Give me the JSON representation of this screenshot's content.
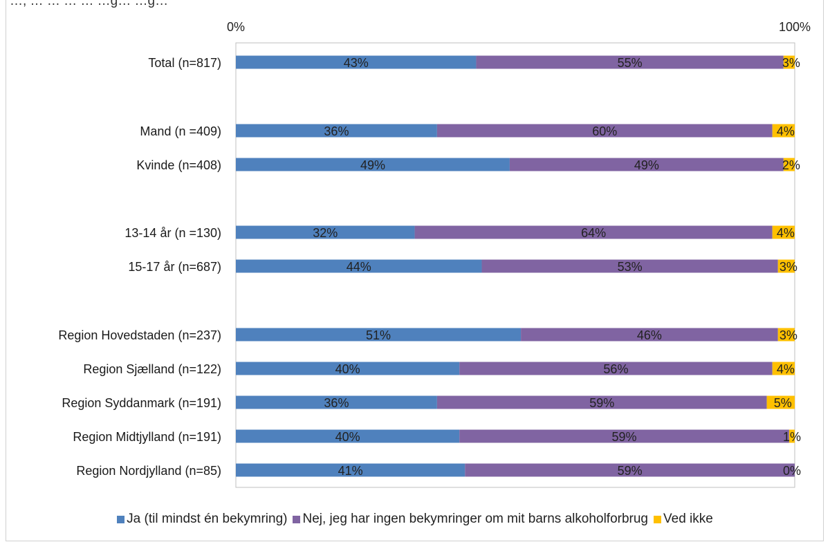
{
  "top_text": "…, … … … … …g… …g…",
  "chart_data": {
    "type": "bar",
    "orientation": "horizontal",
    "stacked": true,
    "percent": true,
    "categories": [
      "Total (n=817)",
      "Mand (n =409)",
      "Kvinde (n=408)",
      "13-14 år (n =130)",
      "15-17 år (n=687)",
      "Region Hovedstaden (n=237)",
      "Region Sjælland (n=122)",
      "Region Syddanmark (n=191)",
      "Region Midtjylland (n=191)",
      "Region Nordjylland (n=85)"
    ],
    "series": [
      {
        "name": "Ja (til mindst én bekymring)",
        "color": "#4f81bd",
        "values": [
          43,
          36,
          49,
          32,
          44,
          51,
          40,
          36,
          40,
          41
        ]
      },
      {
        "name": "Nej, jeg har ingen bekymringer om mit barns alkoholforbrug",
        "color": "#8064a2",
        "values": [
          55,
          60,
          49,
          64,
          53,
          46,
          56,
          59,
          59,
          59
        ]
      },
      {
        "name": "Ved ikke",
        "color": "#ffc000",
        "values": [
          3,
          4,
          2,
          4,
          3,
          3,
          4,
          5,
          1,
          0
        ]
      }
    ],
    "data_labels": [
      [
        "43%",
        "55%",
        "3%"
      ],
      [
        "36%",
        "60%",
        "4%"
      ],
      [
        "49%",
        "49%",
        "2%"
      ],
      [
        "32%",
        "64%",
        "4%"
      ],
      [
        "44%",
        "53%",
        "3%"
      ],
      [
        "51%",
        "46%",
        "3%"
      ],
      [
        "40%",
        "56%",
        "4%"
      ],
      [
        "36%",
        "59%",
        "5%"
      ],
      [
        "40%",
        "59%",
        "1%"
      ],
      [
        "41%",
        "59%",
        "0%"
      ]
    ],
    "xlim": [
      0,
      100
    ],
    "x_tick_labels": [
      "0%",
      "100%"
    ],
    "x_axis_position": "top",
    "legend_position": "bottom",
    "grid": false
  }
}
